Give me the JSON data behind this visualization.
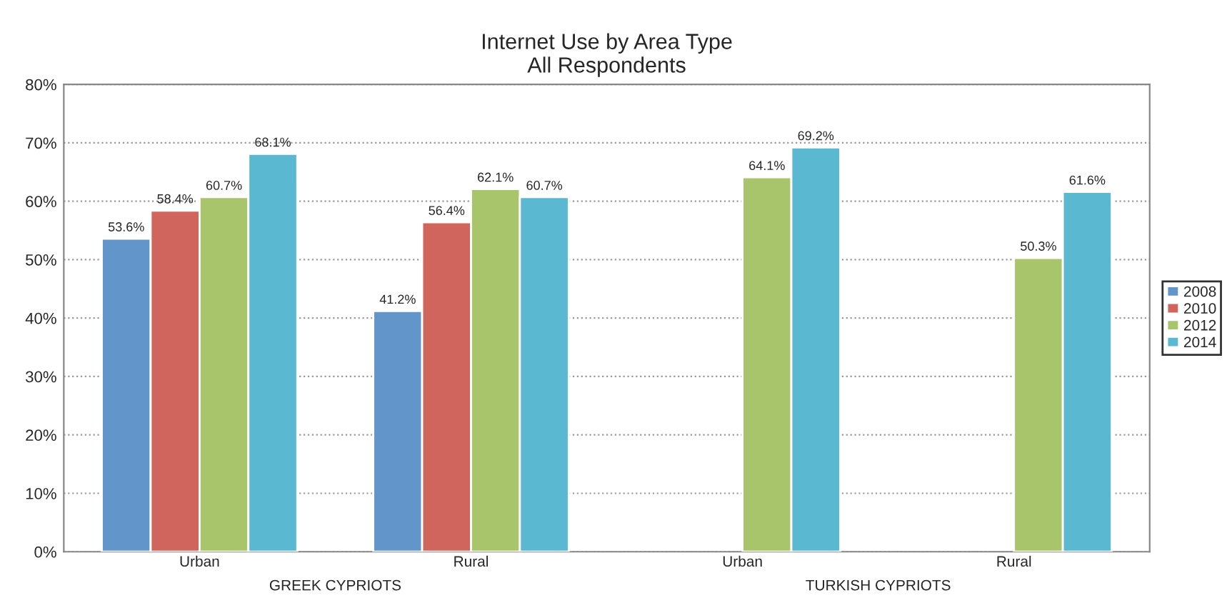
{
  "chart_data": {
    "type": "bar",
    "title": "Internet Use by Area Type\nAll Respondents",
    "categories": [
      "Urban",
      "Rural",
      "Urban",
      "Rural"
    ],
    "series": [
      {
        "name": "2008",
        "color": "#6296cb",
        "values": [
          53.6,
          41.2,
          null,
          null
        ],
        "value_labels": [
          "53.6%",
          "41.2%",
          null,
          null
        ]
      },
      {
        "name": "2010",
        "color": "#d0655e",
        "values": [
          58.4,
          56.4,
          null,
          null
        ],
        "value_labels": [
          "58.4%",
          "56.4%",
          null,
          null
        ]
      },
      {
        "name": "2012",
        "color": "#a9c56b",
        "values": [
          60.7,
          62.1,
          64.1,
          50.3
        ],
        "value_labels": [
          "60.7%",
          "62.1%",
          "64.1%",
          "50.3%"
        ]
      },
      {
        "name": "2014",
        "color": "#5ab9d1",
        "values": [
          68.1,
          60.7,
          69.2,
          61.6
        ],
        "value_labels": [
          "68.1%",
          "60.7%",
          "69.2%",
          "61.6%"
        ]
      }
    ],
    "ylim": [
      0,
      80
    ],
    "yticks": [
      {
        "value": 0,
        "label": "0%"
      },
      {
        "value": 10,
        "label": "10%"
      },
      {
        "value": 20,
        "label": "20%"
      },
      {
        "value": 30,
        "label": "30%"
      },
      {
        "value": 40,
        "label": "40%"
      },
      {
        "value": 50,
        "label": "50%"
      },
      {
        "value": 60,
        "label": "60%"
      },
      {
        "value": 70,
        "label": "70%"
      },
      {
        "value": 80,
        "label": "80%"
      }
    ],
    "annotations": [
      "GREEK CYPRIOTS",
      "TURKISH CYPRIOTS"
    ],
    "grid": "y",
    "legend": "right"
  }
}
